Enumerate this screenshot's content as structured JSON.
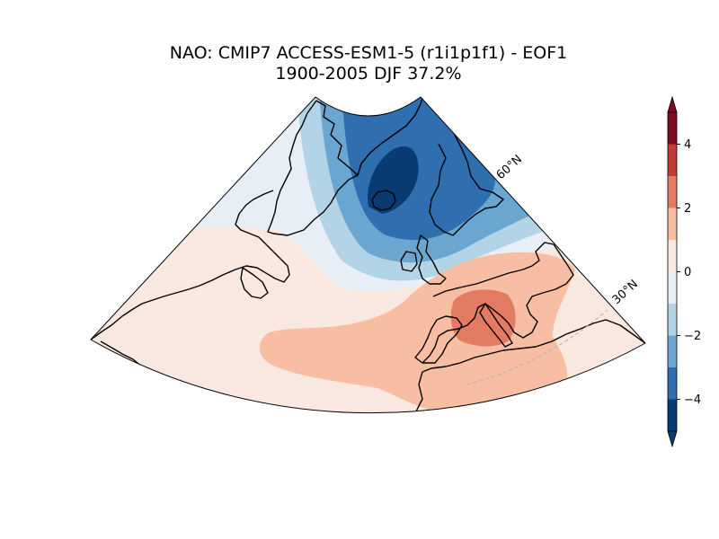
{
  "title": {
    "line1": "NAO: CMIP7 ACCESS-ESM1-5 (r1i1p1f1) - EOF1",
    "line2": "1900-2005 DJF 37.2%"
  },
  "map": {
    "projection": "lambert-conformal",
    "gridline_labels": [
      "60°N",
      "30°N"
    ],
    "features": [
      "Greenland",
      "Iceland",
      "British Isles",
      "Scandinavia",
      "Iberia",
      "Mediterranean",
      "North Africa",
      "North America"
    ]
  },
  "colorbar": {
    "ticks": [
      "4",
      "2",
      "0",
      "−2",
      "−4"
    ],
    "extend": "both",
    "levels": [
      -5,
      -4,
      -3,
      -2,
      -1,
      1,
      2,
      3,
      4,
      5
    ],
    "colors": {
      "lt_-4": "#0a3b72",
      "-4_-3": "#2f6fb0",
      "-3_-2": "#6aa6cf",
      "-2_-1": "#b3d3e7",
      "-1_1_neg": "#e7eef5",
      "-1_1_pos": "#f8e8e0",
      "1_2": "#f7bea3",
      "2_3": "#e27b62",
      "3_4": "#c43a3a",
      "gt_4": "#7e0b22"
    }
  },
  "chart_data": {
    "type": "heatmap",
    "title": "NAO: CMIP7 ACCESS-ESM1-5 (r1i1p1f1) - EOF1 1900-2005 DJF 37.2%",
    "colorbar_range": [
      -5,
      5
    ],
    "colorbar_ticks": [
      -4,
      -2,
      0,
      2,
      4
    ],
    "extend": "both",
    "pattern": {
      "negative_center": "Iceland / Greenland Sea, minimum below -4",
      "positive_center": "Western Mediterranean / Italy, maximum 2 to 3",
      "positive_band": "subtropical Atlantic to Iberia, 1 to 2"
    },
    "explained_variance_pct": 37.2,
    "period": "1900-2005",
    "season": "DJF"
  }
}
